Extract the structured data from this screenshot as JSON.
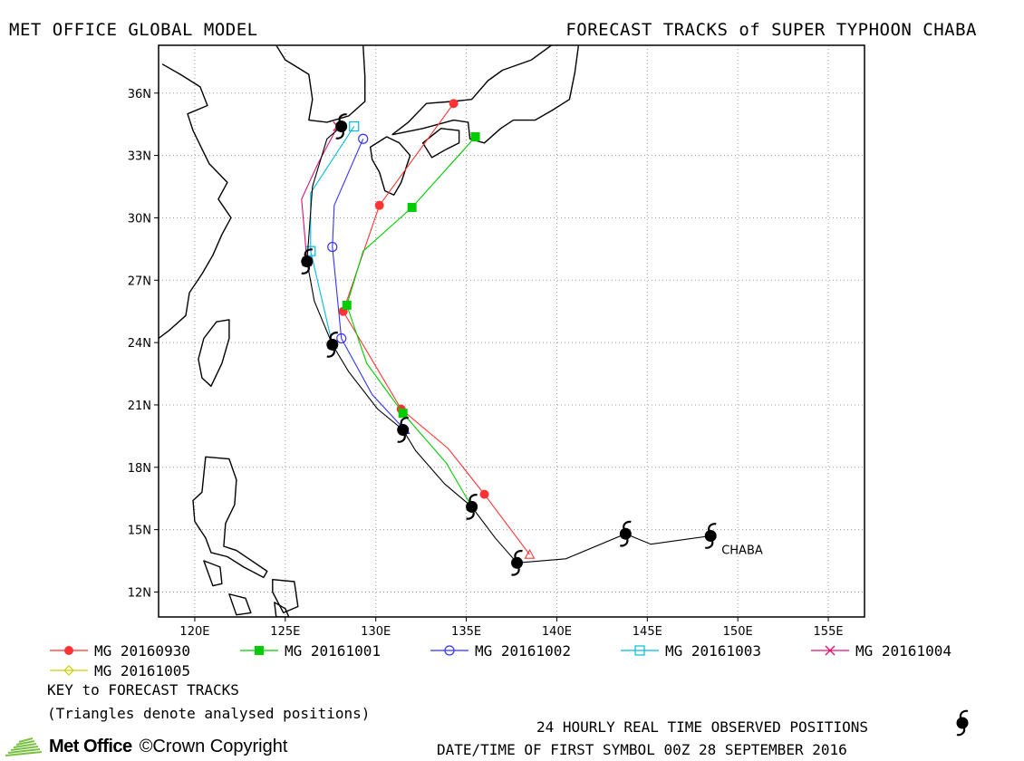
{
  "header": {
    "left_title": "MET OFFICE GLOBAL MODEL",
    "right_title": "FORECAST TRACKS of SUPER TYPHOON CHABA"
  },
  "chart_data": {
    "type": "map",
    "title": "FORECAST TRACKS of SUPER TYPHOON CHABA",
    "xlim": [
      118,
      157
    ],
    "ylim": [
      10.8,
      38.3
    ],
    "x_ticks": [
      {
        "value": 120,
        "label": "120E"
      },
      {
        "value": 125,
        "label": "125E"
      },
      {
        "value": 130,
        "label": "130E"
      },
      {
        "value": 135,
        "label": "135E"
      },
      {
        "value": 140,
        "label": "140E"
      },
      {
        "value": 145,
        "label": "145E"
      },
      {
        "value": 150,
        "label": "150E"
      },
      {
        "value": 155,
        "label": "155E"
      }
    ],
    "y_ticks": [
      {
        "value": 12,
        "label": "12N"
      },
      {
        "value": 15,
        "label": "15N"
      },
      {
        "value": 18,
        "label": "18N"
      },
      {
        "value": 21,
        "label": "21N"
      },
      {
        "value": 24,
        "label": "24N"
      },
      {
        "value": 27,
        "label": "27N"
      },
      {
        "value": 30,
        "label": "30N"
      },
      {
        "value": 33,
        "label": "33N"
      },
      {
        "value": 36,
        "label": "36N"
      }
    ],
    "grid": true,
    "observed": {
      "name": "CHABA",
      "track": [
        [
          148.5,
          14.7
        ],
        [
          145.2,
          14.3
        ],
        [
          143.8,
          14.8
        ],
        [
          140.5,
          13.6
        ],
        [
          137.8,
          13.4
        ],
        [
          136.6,
          14.6
        ],
        [
          135.3,
          16.1
        ],
        [
          133.8,
          17.2
        ],
        [
          132.2,
          18.8
        ],
        [
          131.5,
          19.8
        ],
        [
          130.1,
          20.8
        ],
        [
          128.5,
          22.6
        ],
        [
          127.6,
          23.9
        ],
        [
          126.6,
          26.0
        ],
        [
          126.2,
          27.9
        ],
        [
          126.5,
          31.5
        ],
        [
          127.3,
          33.8
        ],
        [
          128.1,
          34.4
        ]
      ],
      "positions": [
        [
          148.5,
          14.7
        ],
        [
          143.8,
          14.8
        ],
        [
          137.8,
          13.4
        ],
        [
          135.3,
          16.1
        ],
        [
          131.5,
          19.8
        ],
        [
          127.6,
          23.9
        ],
        [
          126.2,
          27.9
        ],
        [
          128.1,
          34.4
        ]
      ]
    },
    "series": [
      {
        "name": "MG 20160930",
        "color": "#ff3333",
        "marker": "filled-circle",
        "analysed": [
          138.5,
          13.8
        ],
        "points": [
          [
            138.5,
            13.8
          ],
          [
            136.0,
            16.7
          ],
          [
            134.0,
            18.9
          ],
          [
            131.4,
            20.8
          ],
          [
            128.2,
            25.5
          ],
          [
            130.2,
            30.6
          ],
          [
            134.3,
            35.5
          ]
        ],
        "marked": [
          [
            136.0,
            16.7
          ],
          [
            131.4,
            20.8
          ],
          [
            128.2,
            25.5
          ],
          [
            130.2,
            30.6
          ],
          [
            134.3,
            35.5
          ]
        ]
      },
      {
        "name": "MG 20161001",
        "color": "#00cc00",
        "marker": "filled-square",
        "analysed": [
          135.3,
          16.1
        ],
        "points": [
          [
            135.3,
            16.1
          ],
          [
            133.9,
            18.2
          ],
          [
            131.5,
            20.6
          ],
          [
            129.5,
            23.0
          ],
          [
            128.4,
            25.8
          ],
          [
            129.3,
            28.4
          ],
          [
            132.0,
            30.5
          ],
          [
            135.5,
            33.9
          ]
        ],
        "marked": [
          [
            131.5,
            20.6
          ],
          [
            128.4,
            25.8
          ],
          [
            132.0,
            30.5
          ],
          [
            135.5,
            33.9
          ]
        ]
      },
      {
        "name": "MG 20161002",
        "color": "#3333ff",
        "marker": "open-circle",
        "analysed": [
          131.6,
          19.8
        ],
        "points": [
          [
            131.6,
            19.8
          ],
          [
            129.8,
            21.5
          ],
          [
            128.1,
            24.2
          ],
          [
            127.6,
            28.6
          ],
          [
            127.7,
            30.6
          ],
          [
            129.3,
            33.8
          ]
        ],
        "marked": [
          [
            128.1,
            24.2
          ],
          [
            127.6,
            28.6
          ],
          [
            129.3,
            33.8
          ]
        ]
      },
      {
        "name": "MG 20161003",
        "color": "#00bbdd",
        "marker": "open-square",
        "analysed": [
          127.6,
          23.9
        ],
        "points": [
          [
            127.6,
            23.9
          ],
          [
            126.4,
            28.4
          ],
          [
            126.4,
            31.2
          ],
          [
            128.8,
            34.4
          ]
        ],
        "marked": [
          [
            126.4,
            28.4
          ],
          [
            128.8,
            34.4
          ]
        ]
      },
      {
        "name": "MG 20161004",
        "color": "#dd1177",
        "marker": "cross",
        "analysed": [
          126.2,
          27.9
        ],
        "points": [
          [
            126.2,
            27.9
          ],
          [
            125.9,
            30.9
          ],
          [
            126.8,
            32.6
          ],
          [
            127.9,
            34.4
          ]
        ],
        "marked": [
          [
            126.2,
            27.9
          ],
          [
            127.9,
            34.4
          ]
        ]
      },
      {
        "name": "MG 20161005",
        "color": "#cccc00",
        "marker": "open-diamond",
        "analysed": [
          128.0,
          34.5
        ],
        "points": [
          [
            128.0,
            34.5
          ]
        ],
        "marked": []
      }
    ],
    "legend_placement": "bottom"
  },
  "legend": {
    "items": [
      {
        "label": "MG 20160930"
      },
      {
        "label": "MG 20161001"
      },
      {
        "label": "MG 20161002"
      },
      {
        "label": "MG 20161003"
      },
      {
        "label": "MG 20161004"
      },
      {
        "label": "MG 20161005"
      }
    ]
  },
  "notes": {
    "key_title": "KEY to FORECAST TRACKS",
    "triangles": "(Triangles denote analysed positions)",
    "observed": "24 HOURLY REAL TIME OBSERVED POSITIONS",
    "datetime": "DATE/TIME OF FIRST SYMBOL 00Z 28 SEPTEMBER 2016"
  },
  "footer": {
    "brand": "Met Office",
    "copyright": "©Crown Copyright",
    "brand_color": "#7ac143"
  }
}
